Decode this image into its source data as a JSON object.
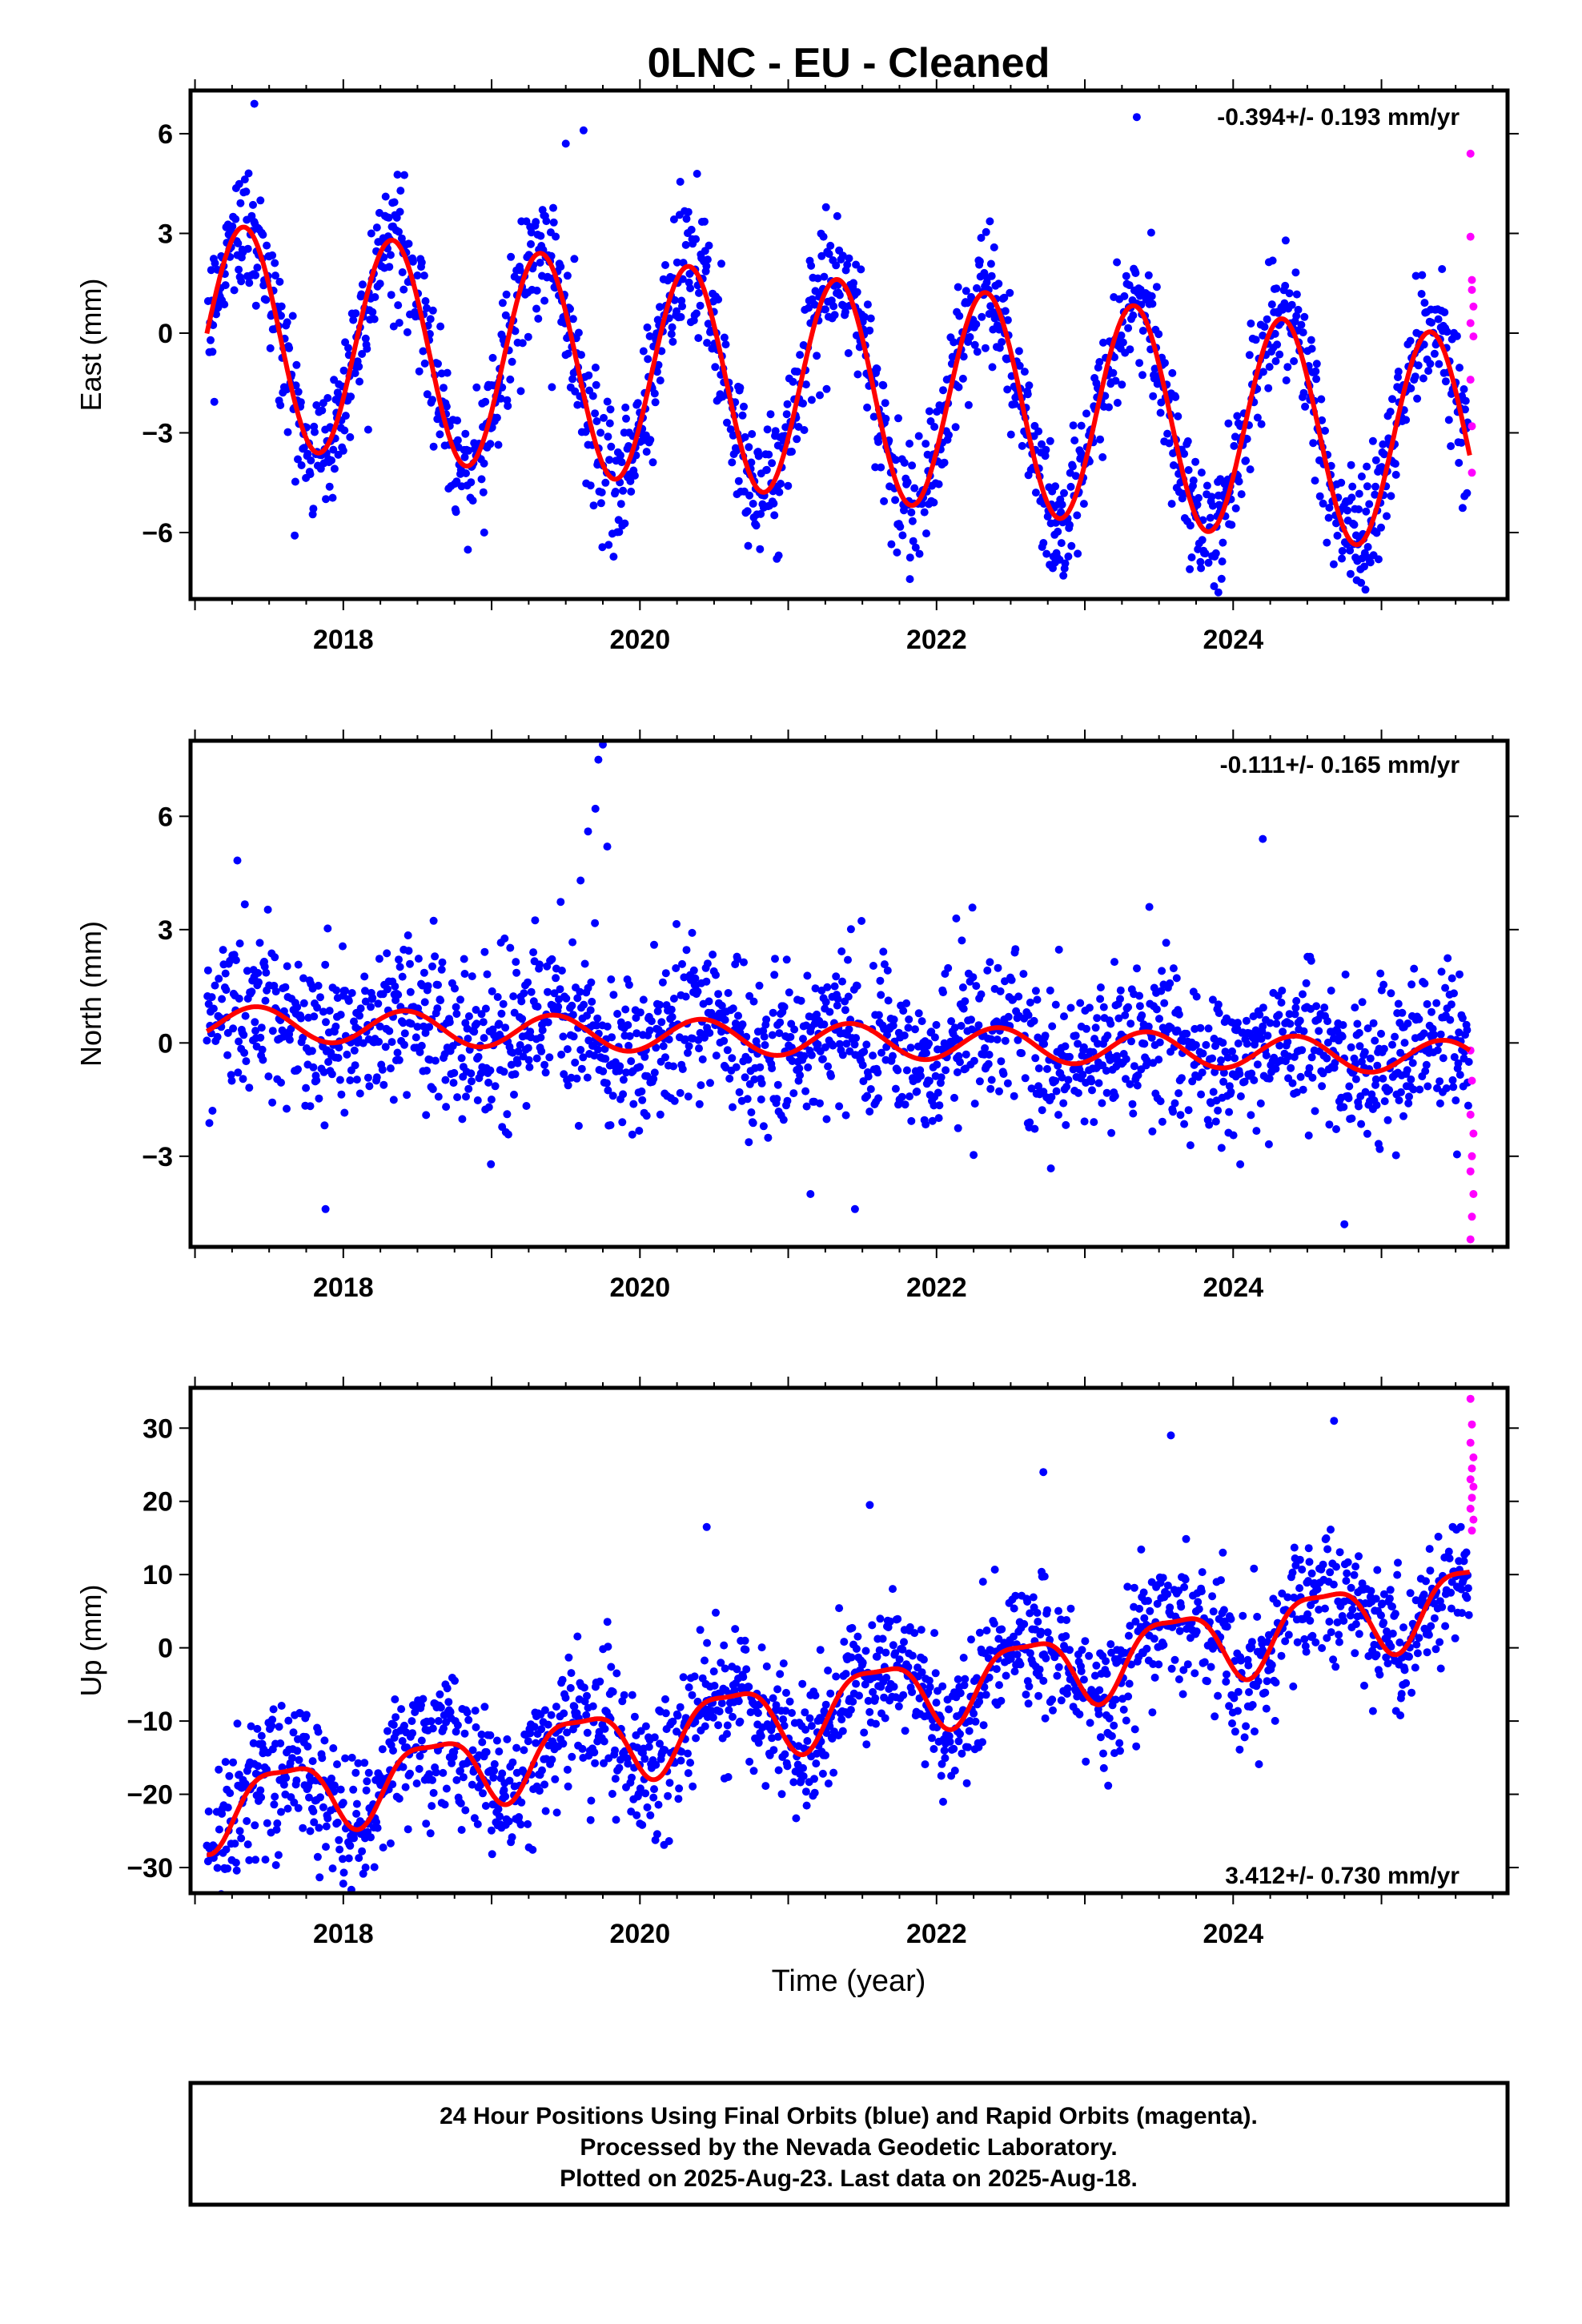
{
  "title": "0LNC  - EU - Cleaned",
  "colors": {
    "final": "#0000ff",
    "rapid": "#ff00ff",
    "model": "#ff0000"
  },
  "chart_data": [
    {
      "type": "scatter",
      "name": "east",
      "ylabel": "East (mm)",
      "rate": "-0.394+/- 0.193 mm/yr",
      "ylim": [
        -8.0,
        7.3
      ],
      "yticks": [
        "6",
        "3",
        "0",
        "−3",
        "−6"
      ],
      "xlim": [
        2016.97,
        2025.85
      ],
      "xticks": [
        "2018",
        "2020",
        "2022",
        "2024"
      ],
      "model": {
        "offset": 0.0,
        "rate": -0.394,
        "amplitude": 3.3,
        "peak_phase": 0.33,
        "amplitude2": 0.0,
        "peak_phase2": 0.0
      },
      "scatter_sd": 1.0,
      "rapid_points": [
        [
          2025.6,
          5.4
        ],
        [
          2025.6,
          2.9
        ],
        [
          2025.61,
          1.6
        ],
        [
          2025.61,
          1.3
        ],
        [
          2025.62,
          0.8
        ],
        [
          2025.6,
          0.3
        ],
        [
          2025.62,
          -0.1
        ],
        [
          2025.6,
          -1.4
        ],
        [
          2025.61,
          -2.8
        ],
        [
          2025.61,
          -4.2
        ]
      ],
      "outliers": [
        [
          2023.35,
          6.5
        ],
        [
          2019.62,
          6.1
        ],
        [
          2017.4,
          6.9
        ],
        [
          2021.82,
          -7.4
        ],
        [
          2022.8,
          -6.9
        ],
        [
          2023.9,
          -7.8
        ],
        [
          2018.95,
          -6.0
        ],
        [
          2019.5,
          5.7
        ]
      ]
    },
    {
      "type": "scatter",
      "name": "north",
      "ylabel": "North (mm)",
      "rate": "-0.111+/- 0.165 mm/yr",
      "ylim": [
        -5.4,
        8.0
      ],
      "yticks": [
        "6",
        "3",
        "0",
        "−3"
      ],
      "xlim": [
        2016.97,
        2025.85
      ],
      "xticks": [
        "2018",
        "2020",
        "2022",
        "2024"
      ],
      "model": {
        "offset": 0.55,
        "rate": -0.111,
        "amplitude": 0.45,
        "peak_phase": 0.42,
        "amplitude2": 0.0,
        "peak_phase2": 0.0
      },
      "scatter_sd": 1.05,
      "rapid_points": [
        [
          2025.6,
          -0.2
        ],
        [
          2025.61,
          -1.0
        ],
        [
          2025.6,
          -1.9
        ],
        [
          2025.62,
          -2.4
        ],
        [
          2025.61,
          -3.0
        ],
        [
          2025.6,
          -3.4
        ],
        [
          2025.62,
          -4.0
        ],
        [
          2025.61,
          -4.6
        ],
        [
          2025.6,
          -5.2
        ]
      ],
      "outliers": [
        [
          2019.75,
          7.9
        ],
        [
          2019.72,
          7.5
        ],
        [
          2019.7,
          6.2
        ],
        [
          2019.65,
          5.6
        ],
        [
          2019.78,
          5.2
        ],
        [
          2019.6,
          4.3
        ],
        [
          2024.2,
          5.4
        ],
        [
          2017.88,
          -4.4
        ],
        [
          2024.75,
          -4.8
        ],
        [
          2021.45,
          -4.4
        ],
        [
          2021.15,
          -4.0
        ]
      ]
    },
    {
      "type": "scatter",
      "name": "up",
      "ylabel": "Up (mm)",
      "rate": "3.412+/- 0.730 mm/yr",
      "ylim": [
        -33.5,
        35.5
      ],
      "yticks": [
        "30",
        "20",
        "10",
        "0",
        "−10",
        "−20",
        "−30"
      ],
      "xlim": [
        2016.97,
        2025.85
      ],
      "xticks": [
        "2018",
        "2020",
        "2022",
        "2024"
      ],
      "xlabel": "Time (year)",
      "model": {
        "offset": -22.2,
        "rate": 3.412,
        "amplitude": 4.8,
        "peak_phase": 0.6,
        "amplitude2": 1.4,
        "peak_phase2": 0.35
      },
      "scatter_sd": 4.5,
      "rapid_points": [
        [
          2025.6,
          34.0
        ],
        [
          2025.61,
          30.5
        ],
        [
          2025.6,
          28.0
        ],
        [
          2025.62,
          26.0
        ],
        [
          2025.61,
          24.5
        ],
        [
          2025.6,
          23.0
        ],
        [
          2025.62,
          22.0
        ],
        [
          2025.61,
          20.5
        ],
        [
          2025.6,
          19.0
        ],
        [
          2025.62,
          17.5
        ],
        [
          2025.61,
          16.0
        ]
      ],
      "outliers": [
        [
          2018.0,
          -32.2
        ],
        [
          2018.15,
          -30.0
        ],
        [
          2017.08,
          -27.0
        ],
        [
          2024.68,
          31.0
        ],
        [
          2023.58,
          29.0
        ],
        [
          2022.72,
          24.0
        ],
        [
          2020.45,
          16.5
        ],
        [
          2021.55,
          19.5
        ],
        [
          2024.1,
          -8.0
        ],
        [
          2020.0,
          -24.0
        ]
      ]
    }
  ],
  "footer": [
    "24 Hour Positions Using Final Orbits (blue) and Rapid Orbits (magenta).",
    "Processed by the Nevada Geodetic Laboratory.",
    "Plotted on 2025-Aug-23. Last data on 2025-Aug-18."
  ]
}
